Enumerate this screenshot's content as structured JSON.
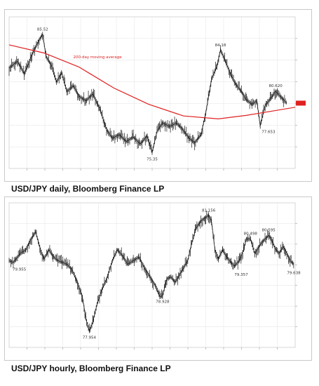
{
  "captions": {
    "daily": "USD/JPY daily, Bloomberg Finance LP",
    "hourly": "USD/JPY hourly, Bloomberg Finance LP"
  },
  "colors": {
    "price": "#1a1a1a",
    "moving_average": "#e02020",
    "grid": "#e8e8e8",
    "current_badge": "#e02020"
  },
  "chart_data": [
    {
      "type": "line",
      "caption": "USD/JPY daily, Bloomberg Finance LP",
      "series": [
        {
          "name": "",
          "points": [
            [
              0,
              82.6
            ],
            [
              12,
              83.2
            ],
            [
              22,
              82.1
            ],
            [
              33,
              83.8
            ],
            [
              42,
              84.9
            ],
            [
              48,
              85.52
            ],
            [
              53,
              83.6
            ],
            [
              60,
              82.9
            ],
            [
              68,
              81.4
            ],
            [
              75,
              82.2
            ],
            [
              83,
              80.6
            ],
            [
              92,
              81.1
            ],
            [
              100,
              80.2
            ],
            [
              110,
              79.8
            ],
            [
              120,
              80.4
            ],
            [
              130,
              79.1
            ],
            [
              140,
              77.3
            ],
            [
              148,
              76.6
            ],
            [
              158,
              76.9
            ],
            [
              168,
              76.3
            ],
            [
              178,
              76.7
            ],
            [
              188,
              76.1
            ],
            [
              198,
              76.8
            ],
            [
              205,
              75.35
            ],
            [
              212,
              77.2
            ],
            [
              220,
              77.9
            ],
            [
              230,
              77.6
            ],
            [
              240,
              77.9
            ],
            [
              248,
              77.4
            ],
            [
              258,
              76.6
            ],
            [
              266,
              76.2
            ],
            [
              275,
              76.9
            ],
            [
              282,
              78.8
            ],
            [
              290,
              81.6
            ],
            [
              298,
              82.8
            ],
            [
              303,
              84.18
            ],
            [
              310,
              83.2
            ],
            [
              318,
              82.0
            ],
            [
              325,
              81.2
            ],
            [
              333,
              80.6
            ],
            [
              340,
              79.9
            ],
            [
              348,
              79.5
            ],
            [
              355,
              79.8
            ],
            [
              360,
              77.653
            ],
            [
              367,
              79.4
            ],
            [
              375,
              80.0
            ],
            [
              382,
              80.62
            ],
            [
              390,
              80.1
            ],
            [
              398,
              79.6
            ]
          ]
        },
        {
          "name": "200-day moving average",
          "points": [
            [
              0,
              84.6
            ],
            [
              50,
              83.9
            ],
            [
              100,
              82.7
            ],
            [
              150,
              80.9
            ],
            [
              200,
              79.5
            ],
            [
              250,
              78.5
            ],
            [
              300,
              78.25
            ],
            [
              340,
              78.55
            ],
            [
              380,
              78.95
            ],
            [
              410,
              79.25
            ]
          ]
        }
      ],
      "annotations": [
        "85.52",
        "200-day moving average",
        "75.35",
        "84.18",
        "77.653",
        "80.620"
      ],
      "ylim": [
        74.0,
        87.0
      ],
      "grid": true,
      "current_value_badge": true
    },
    {
      "type": "line",
      "caption": "USD/JPY hourly, Bloomberg Finance LP",
      "series": [
        {
          "name": "",
          "points": [
            [
              0,
              79.9
            ],
            [
              6,
              79.85
            ],
            [
              16,
              80.1
            ],
            [
              24,
              80.2
            ],
            [
              30,
              80.45
            ],
            [
              38,
              80.7
            ],
            [
              45,
              80.2
            ],
            [
              50,
              79.95
            ],
            [
              57,
              80.2
            ],
            [
              64,
              80.0
            ],
            [
              70,
              79.9
            ],
            [
              77,
              79.85
            ],
            [
              83,
              79.8
            ],
            [
              90,
              79.65
            ],
            [
              98,
              79.3
            ],
            [
              105,
              78.9
            ],
            [
              110,
              78.3
            ],
            [
              115,
              77.954
            ],
            [
              120,
              78.2
            ],
            [
              126,
              78.7
            ],
            [
              133,
              79.1
            ],
            [
              140,
              79.4
            ],
            [
              148,
              79.9
            ],
            [
              155,
              80.2
            ],
            [
              162,
              80.05
            ],
            [
              170,
              79.8
            ],
            [
              178,
              79.9
            ],
            [
              186,
              80.0
            ],
            [
              194,
              79.7
            ],
            [
              202,
              79.45
            ],
            [
              210,
              79.2
            ],
            [
              216,
              78.9
            ],
            [
              220,
              78.928
            ],
            [
              226,
              79.4
            ],
            [
              232,
              79.45
            ],
            [
              238,
              79.3
            ],
            [
              244,
              79.5
            ],
            [
              250,
              79.7
            ],
            [
              256,
              79.9
            ],
            [
              262,
              80.4
            ],
            [
              268,
              80.8
            ],
            [
              275,
              81.0
            ],
            [
              282,
              81.1
            ],
            [
              286,
              81.156
            ],
            [
              290,
              81.0
            ],
            [
              295,
              80.2
            ],
            [
              300,
              79.95
            ],
            [
              306,
              80.2
            ],
            [
              312,
              80.0
            ],
            [
              318,
              79.85
            ],
            [
              323,
              79.75
            ],
            [
              330,
              79.9
            ],
            [
              336,
              80.2
            ],
            [
              340,
              80.5
            ],
            [
              346,
              80.498
            ],
            [
              352,
              80.1
            ],
            [
              357,
              80.25
            ],
            [
              362,
              80.4
            ],
            [
              367,
              80.5
            ],
            [
              372,
              80.6
            ],
            [
              376,
              80.5
            ],
            [
              381,
              80.25
            ],
            [
              387,
              80.1
            ],
            [
              393,
              80.3
            ],
            [
              398,
              80.1
            ],
            [
              403,
              79.9
            ],
            [
              408,
              79.8
            ]
          ]
        }
      ],
      "annotations": [
        "81.156",
        "79.955",
        "77.954",
        "78.928",
        "80.498",
        "80.595",
        "79.357",
        "79.638"
      ],
      "ylim": [
        77.5,
        81.5
      ],
      "grid": true
    }
  ]
}
